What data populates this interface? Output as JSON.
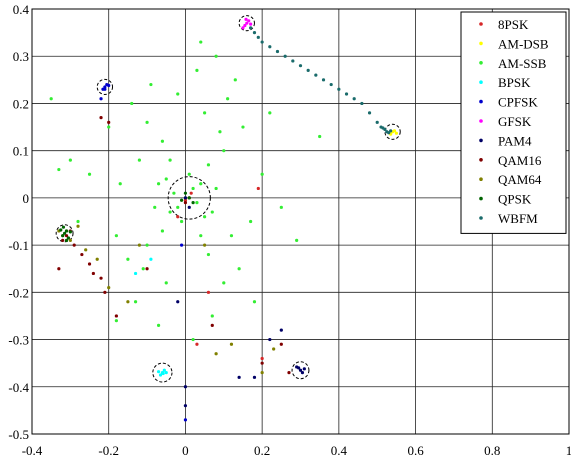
{
  "chart_data": {
    "type": "scatter",
    "xlim": [
      -0.4,
      1.0
    ],
    "ylim": [
      -0.5,
      0.4
    ],
    "x_ticks": [
      "-0.4",
      "-0.2",
      "0",
      "0.2",
      "0.4",
      "0.6",
      "0.8",
      "1"
    ],
    "y_ticks": [
      "0.4",
      "0.3",
      "0.2",
      "0.1",
      "0",
      "-0.1",
      "-0.2",
      "-0.3",
      "-0.4",
      "-0.5"
    ],
    "x_tick_values": [
      -0.4,
      -0.2,
      0,
      0.2,
      0.4,
      0.6,
      0.8,
      1.0
    ],
    "y_tick_values": [
      0.4,
      0.3,
      0.2,
      0.1,
      0,
      -0.1,
      -0.2,
      -0.3,
      -0.4,
      -0.5
    ],
    "grid": true,
    "legend_position": "top-right",
    "series": [
      {
        "name": "8PSK",
        "color": "#d62728",
        "points": [
          [
            0.0,
            -0.005
          ],
          [
            0.01,
            0.0
          ],
          [
            0.19,
            0.02
          ],
          [
            0.06,
            -0.2
          ],
          [
            0.03,
            -0.31
          ],
          [
            0.2,
            -0.34
          ],
          [
            -0.02,
            -0.04
          ],
          [
            0.015,
            0.01
          ]
        ]
      },
      {
        "name": "AM-DSB",
        "color": "#ffff00",
        "points": [
          [
            0.54,
            0.14
          ],
          [
            0.535,
            0.135
          ],
          [
            0.545,
            0.142
          ],
          [
            0.55,
            0.137
          ]
        ]
      },
      {
        "name": "AM-SSB",
        "color": "#33ee33",
        "points": [
          [
            0.0,
            0.0
          ],
          [
            0.02,
            0.02
          ],
          [
            -0.02,
            -0.02
          ],
          [
            0.03,
            -0.01
          ],
          [
            -0.03,
            0.01
          ],
          [
            0.04,
            0.03
          ],
          [
            -0.04,
            -0.03
          ],
          [
            0.01,
            0.05
          ],
          [
            -0.01,
            -0.05
          ],
          [
            0.05,
            -0.04
          ],
          [
            -0.05,
            0.04
          ],
          [
            0.06,
            0.07
          ],
          [
            -0.06,
            -0.07
          ],
          [
            0.08,
            0.02
          ],
          [
            -0.08,
            -0.02
          ],
          [
            0.1,
            0.1
          ],
          [
            -0.1,
            -0.1
          ],
          [
            0.12,
            -0.08
          ],
          [
            -0.12,
            0.08
          ],
          [
            0.15,
            0.15
          ],
          [
            -0.15,
            -0.13
          ],
          [
            0.05,
            0.18
          ],
          [
            -0.05,
            -0.18
          ],
          [
            0.1,
            -0.18
          ],
          [
            -0.1,
            0.16
          ],
          [
            0.13,
            0.25
          ],
          [
            -0.14,
            0.2
          ],
          [
            0.08,
            0.3
          ],
          [
            0.04,
            0.33
          ],
          [
            -0.2,
            0.15
          ],
          [
            0.17,
            -0.05
          ],
          [
            -0.18,
            -0.08
          ],
          [
            0.2,
            0.05
          ],
          [
            -0.25,
            0.05
          ],
          [
            0.14,
            -0.15
          ],
          [
            -0.13,
            -0.22
          ],
          [
            0.07,
            -0.25
          ],
          [
            -0.07,
            -0.27
          ],
          [
            0.02,
            -0.3
          ],
          [
            -0.02,
            0.22
          ],
          [
            0.03,
            0.27
          ],
          [
            -0.28,
            -0.05
          ],
          [
            0.25,
            -0.02
          ],
          [
            0.22,
            0.18
          ],
          [
            -0.3,
            0.08
          ],
          [
            -0.35,
            0.21
          ],
          [
            -0.33,
            0.06
          ],
          [
            -0.17,
            0.03
          ],
          [
            0.11,
            0.21
          ],
          [
            -0.09,
            0.24
          ],
          [
            0.06,
            -0.12
          ],
          [
            -0.06,
            0.12
          ],
          [
            0.29,
            -0.09
          ],
          [
            0.35,
            0.13
          ],
          [
            -0.18,
            -0.26
          ],
          [
            0.18,
            -0.22
          ],
          [
            0.09,
            0.14
          ],
          [
            -0.11,
            -0.15
          ],
          [
            0.04,
            -0.08
          ],
          [
            -0.04,
            0.08
          ],
          [
            0.07,
            -0.03
          ],
          [
            -0.07,
            0.03
          ]
        ]
      },
      {
        "name": "BPSK",
        "color": "#00ffff",
        "points": [
          [
            -0.06,
            -0.37
          ],
          [
            -0.055,
            -0.365
          ],
          [
            -0.065,
            -0.375
          ],
          [
            -0.05,
            -0.37
          ],
          [
            -0.07,
            -0.368
          ],
          [
            -0.058,
            -0.372
          ],
          [
            -0.13,
            -0.16
          ],
          [
            -0.09,
            -0.13
          ]
        ]
      },
      {
        "name": "CPFSK",
        "color": "#0000cc",
        "points": [
          [
            -0.21,
            0.235
          ],
          [
            -0.205,
            0.24
          ],
          [
            -0.215,
            0.23
          ],
          [
            -0.21,
            0.23
          ],
          [
            -0.2,
            0.238
          ],
          [
            -0.22,
            0.21
          ],
          [
            0.0,
            -0.47
          ],
          [
            -0.01,
            -0.1
          ]
        ]
      },
      {
        "name": "GFSK",
        "color": "#ff00ff",
        "points": [
          [
            0.16,
            0.37
          ],
          [
            0.165,
            0.375
          ],
          [
            0.155,
            0.365
          ],
          [
            0.17,
            0.368
          ],
          [
            0.158,
            0.378
          ],
          [
            0.15,
            0.36
          ]
        ]
      },
      {
        "name": "PAM4",
        "color": "#000066",
        "points": [
          [
            0.3,
            -0.365
          ],
          [
            0.295,
            -0.36
          ],
          [
            0.305,
            -0.37
          ],
          [
            0.29,
            -0.358
          ],
          [
            0.31,
            -0.362
          ],
          [
            0.0,
            -0.4
          ],
          [
            0.0,
            -0.44
          ],
          [
            0.22,
            -0.3
          ],
          [
            0.25,
            -0.28
          ],
          [
            0.18,
            -0.38
          ],
          [
            0.14,
            -0.38
          ],
          [
            -0.02,
            -0.22
          ],
          [
            0.0,
            0.0
          ],
          [
            0.01,
            -0.02
          ]
        ]
      },
      {
        "name": "QAM16",
        "color": "#800000",
        "points": [
          [
            -0.31,
            -0.08
          ],
          [
            -0.3,
            -0.07
          ],
          [
            -0.32,
            -0.09
          ],
          [
            -0.29,
            -0.1
          ],
          [
            -0.27,
            -0.12
          ],
          [
            -0.25,
            -0.14
          ],
          [
            -0.24,
            -0.16
          ],
          [
            -0.22,
            -0.17
          ],
          [
            -0.21,
            -0.2
          ],
          [
            -0.18,
            -0.25
          ],
          [
            -0.2,
            0.16
          ],
          [
            -0.22,
            0.17
          ],
          [
            0.0,
            -0.01
          ],
          [
            0.2,
            -0.35
          ],
          [
            -0.33,
            -0.15
          ],
          [
            -0.1,
            -0.15
          ],
          [
            0.25,
            -0.31
          ],
          [
            0.27,
            -0.37
          ],
          [
            0.07,
            -0.27
          ]
        ]
      },
      {
        "name": "QAM64",
        "color": "#808000",
        "points": [
          [
            -0.31,
            -0.07
          ],
          [
            -0.32,
            -0.08
          ],
          [
            -0.3,
            -0.09
          ],
          [
            -0.28,
            -0.06
          ],
          [
            -0.26,
            -0.11
          ],
          [
            -0.23,
            -0.13
          ],
          [
            -0.2,
            -0.19
          ],
          [
            -0.15,
            -0.22
          ],
          [
            0.08,
            -0.33
          ],
          [
            0.12,
            -0.31
          ],
          [
            0.2,
            -0.37
          ],
          [
            0.23,
            -0.32
          ],
          [
            -0.12,
            -0.1
          ],
          [
            0.05,
            -0.1
          ],
          [
            0.01,
            0.0
          ],
          [
            -0.33,
            -0.07
          ]
        ]
      },
      {
        "name": "QPSK",
        "color": "#006400",
        "points": [
          [
            -0.315,
            -0.075
          ],
          [
            -0.31,
            -0.07
          ],
          [
            -0.32,
            -0.08
          ],
          [
            -0.305,
            -0.085
          ],
          [
            -0.325,
            -0.068
          ],
          [
            -0.31,
            -0.09
          ],
          [
            -0.3,
            -0.072
          ],
          [
            -0.318,
            -0.062
          ],
          [
            0.01,
            0.0
          ],
          [
            0.0,
            0.01
          ],
          [
            0.02,
            -0.01
          ],
          [
            -0.01,
            -0.005
          ]
        ]
      },
      {
        "name": "WBFM",
        "color": "#1a6b6b",
        "points": [
          [
            0.17,
            0.36
          ],
          [
            0.18,
            0.35
          ],
          [
            0.19,
            0.34
          ],
          [
            0.2,
            0.33
          ],
          [
            0.22,
            0.32
          ],
          [
            0.24,
            0.31
          ],
          [
            0.26,
            0.3
          ],
          [
            0.28,
            0.29
          ],
          [
            0.3,
            0.28
          ],
          [
            0.32,
            0.27
          ],
          [
            0.34,
            0.26
          ],
          [
            0.36,
            0.25
          ],
          [
            0.38,
            0.24
          ],
          [
            0.4,
            0.23
          ],
          [
            0.42,
            0.22
          ],
          [
            0.44,
            0.21
          ],
          [
            0.46,
            0.2
          ],
          [
            0.48,
            0.18
          ],
          [
            0.5,
            0.16
          ],
          [
            0.51,
            0.15
          ],
          [
            0.52,
            0.145
          ],
          [
            0.525,
            0.14
          ],
          [
            0.53,
            0.138
          ],
          [
            0.515,
            0.148
          ],
          [
            0.535,
            0.142
          ]
        ]
      }
    ],
    "circles": [
      {
        "cx": -0.21,
        "cy": 0.235,
        "rx": 0.02,
        "ry": 0.016
      },
      {
        "cx": 0.16,
        "cy": 0.37,
        "rx": 0.02,
        "ry": 0.016
      },
      {
        "cx": 0.54,
        "cy": 0.14,
        "rx": 0.02,
        "ry": 0.016
      },
      {
        "cx": 0.01,
        "cy": 0.0,
        "rx": 0.055,
        "ry": 0.045
      },
      {
        "cx": -0.315,
        "cy": -0.075,
        "rx": 0.022,
        "ry": 0.018
      },
      {
        "cx": -0.06,
        "cy": -0.37,
        "rx": 0.025,
        "ry": 0.02
      },
      {
        "cx": 0.3,
        "cy": -0.365,
        "rx": 0.022,
        "ry": 0.018
      }
    ]
  }
}
